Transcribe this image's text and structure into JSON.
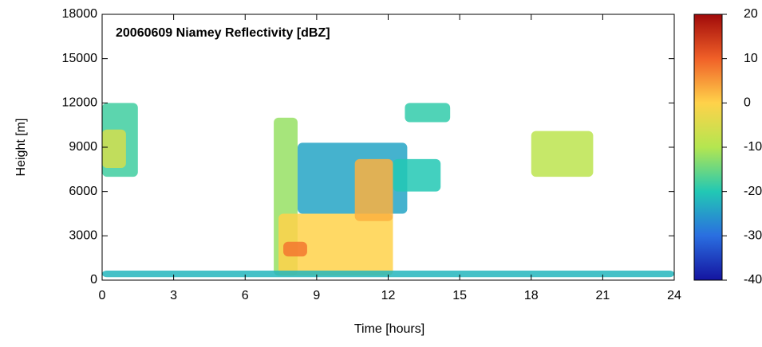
{
  "chart_data": {
    "type": "heatmap",
    "title": "20060609 Niamey Reflectivity [dBZ]",
    "x_label": "Time [hours]",
    "y_label": "Height [m]",
    "xlim": [
      0,
      24
    ],
    "xticks": [
      0,
      3,
      6,
      9,
      12,
      15,
      18,
      21,
      24
    ],
    "ylim": [
      0,
      18000
    ],
    "yticks": [
      0,
      3000,
      6000,
      9000,
      12000,
      15000,
      18000
    ],
    "colorbar": {
      "lim": [
        -40,
        20
      ],
      "ticks": [
        -40,
        -30,
        -20,
        -10,
        0,
        10,
        20
      ],
      "colors": [
        "#1414a0",
        "#2a6ee0",
        "#22c8b4",
        "#b4e650",
        "#ffd24a",
        "#f06028",
        "#a00a0a"
      ]
    },
    "patches": [
      {
        "x": [
          0,
          1.5
        ],
        "y": [
          7000,
          12000
        ],
        "dbz": -18
      },
      {
        "x": [
          0,
          1.0
        ],
        "y": [
          7600,
          10200
        ],
        "dbz": -6
      },
      {
        "x": [
          7.2,
          8.2
        ],
        "y": [
          300,
          11000
        ],
        "dbz": -12
      },
      {
        "x": [
          8.2,
          12.8
        ],
        "y": [
          4500,
          9300
        ],
        "dbz": -24
      },
      {
        "x": [
          7.4,
          12.2
        ],
        "y": [
          300,
          4500
        ],
        "dbz": 0
      },
      {
        "x": [
          10.6,
          12.2
        ],
        "y": [
          4000,
          8200
        ],
        "dbz": 3
      },
      {
        "x": [
          12.2,
          14.2
        ],
        "y": [
          6000,
          8200
        ],
        "dbz": -20
      },
      {
        "x": [
          12.7,
          14.6
        ],
        "y": [
          10700,
          12000
        ],
        "dbz": -19
      },
      {
        "x": [
          18,
          20.6
        ],
        "y": [
          7000,
          10100
        ],
        "dbz": -9
      },
      {
        "x": [
          7.6,
          8.6
        ],
        "y": [
          1600,
          2600
        ],
        "dbz": 8
      },
      {
        "x": [
          0,
          24
        ],
        "y": [
          200,
          650
        ],
        "dbz": -22
      }
    ]
  }
}
